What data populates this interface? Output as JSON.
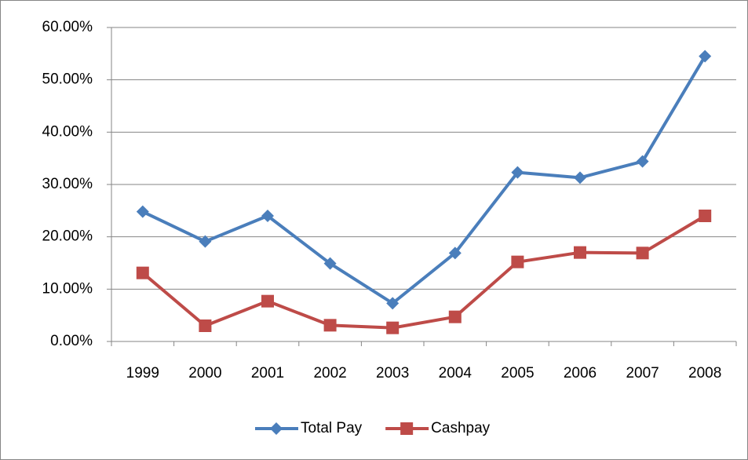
{
  "chart_data": {
    "type": "line",
    "categories": [
      "1999",
      "2000",
      "2001",
      "2002",
      "2003",
      "2004",
      "2005",
      "2006",
      "2007",
      "2008"
    ],
    "series": [
      {
        "name": "Total Pay",
        "color": "#4a7ebb",
        "marker": "diamond",
        "values": [
          24.8,
          19.1,
          24.0,
          14.9,
          7.3,
          16.9,
          32.3,
          31.3,
          34.4,
          54.5
        ]
      },
      {
        "name": "Cashpay",
        "color": "#be4b48",
        "marker": "square",
        "values": [
          13.1,
          3.0,
          7.7,
          3.1,
          2.6,
          4.7,
          15.2,
          17.0,
          16.9,
          24.0
        ]
      }
    ],
    "ylim": [
      0,
      60
    ],
    "yticks": [
      {
        "value": 0,
        "label": "0.00%"
      },
      {
        "value": 10,
        "label": "10.00%"
      },
      {
        "value": 20,
        "label": "20.00%"
      },
      {
        "value": 30,
        "label": "30.00%"
      },
      {
        "value": 40,
        "label": "40.00%"
      },
      {
        "value": 50,
        "label": "50.00%"
      },
      {
        "value": 60,
        "label": "60.00%"
      }
    ],
    "grid": true,
    "legend": "bottom"
  }
}
